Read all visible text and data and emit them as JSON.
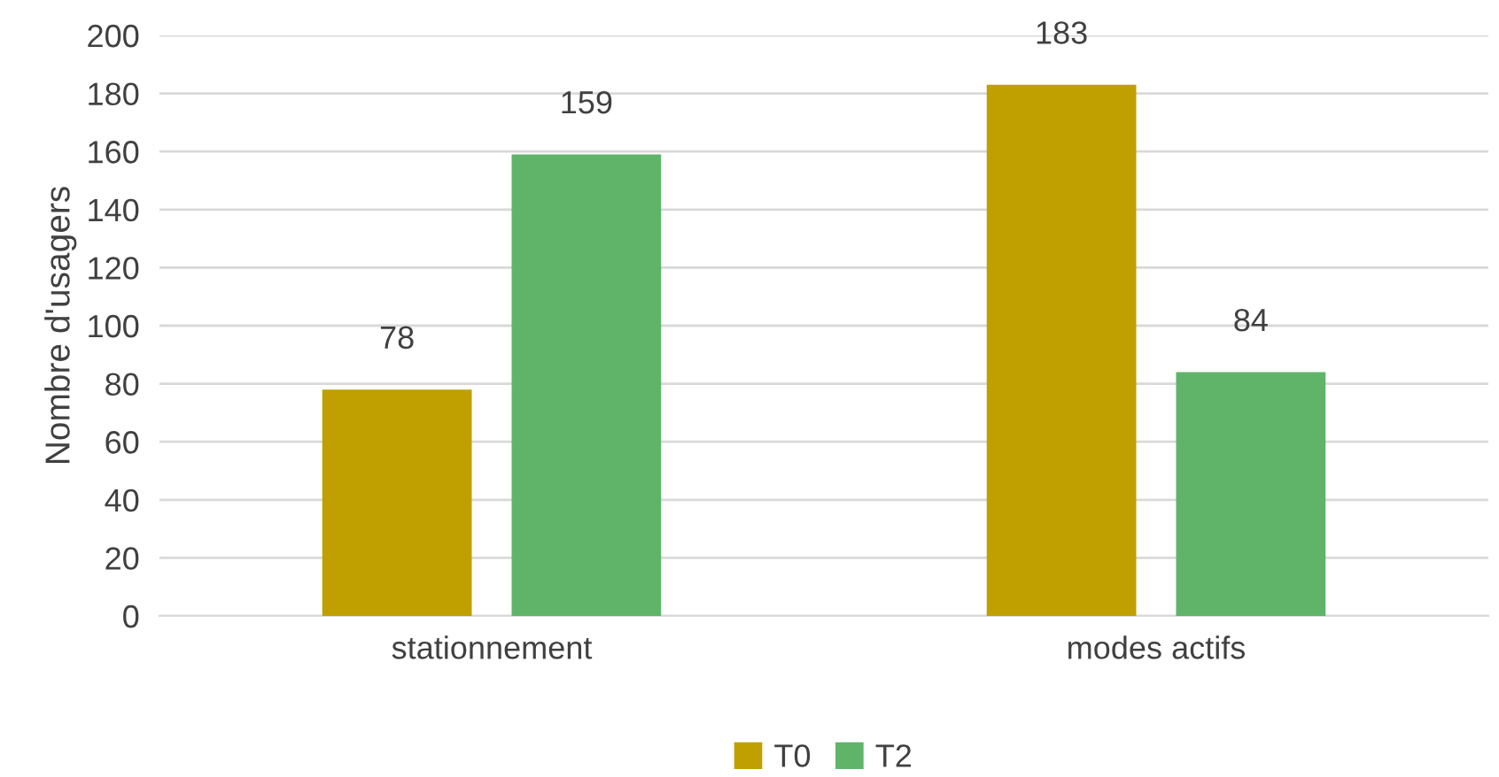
{
  "chart_data": {
    "type": "bar",
    "ylabel": "Nombre d'usagers",
    "categories": [
      "stationnement",
      "modes actifs"
    ],
    "series": [
      {
        "name": "T0",
        "color": "#bfa000",
        "values": [
          78,
          183
        ]
      },
      {
        "name": "T2",
        "color": "#5fb46a",
        "values": [
          159,
          84
        ]
      }
    ],
    "ylim": [
      0,
      200
    ],
    "yticks": [
      0,
      20,
      40,
      60,
      80,
      100,
      120,
      140,
      160,
      180,
      200
    ],
    "grid": "y",
    "legend": "bottom",
    "data_labels": true
  }
}
